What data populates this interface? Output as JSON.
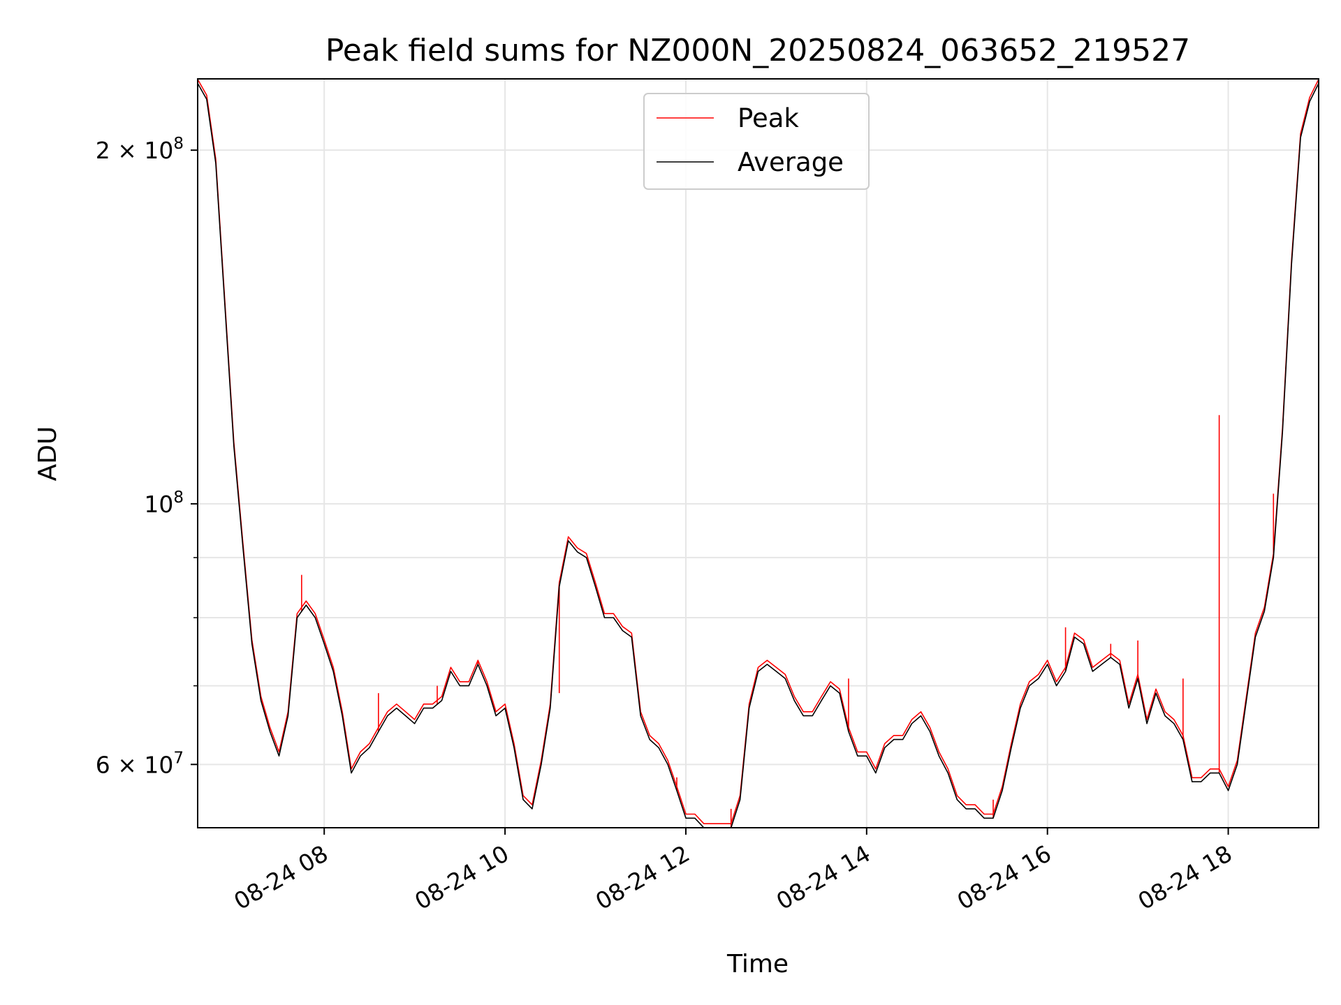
{
  "chart_data": {
    "type": "line",
    "title": "Peak field sums for NZ000N_20250824_063652_219527",
    "xlabel": "Time",
    "ylabel": "ADU",
    "y_scale": "log",
    "xlim": [
      "2025-08-24 06:36",
      "2025-08-24 19:00"
    ],
    "ylim": [
      53000000,
      230000000
    ],
    "grid": true,
    "legend_position": "top-center",
    "x_ticks": [
      {
        "at": "2025-08-24 08:00",
        "label": "08-24 08"
      },
      {
        "at": "2025-08-24 10:00",
        "label": "08-24 10"
      },
      {
        "at": "2025-08-24 12:00",
        "label": "08-24 12"
      },
      {
        "at": "2025-08-24 14:00",
        "label": "08-24 14"
      },
      {
        "at": "2025-08-24 16:00",
        "label": "08-24 16"
      },
      {
        "at": "2025-08-24 18:00",
        "label": "08-24 18"
      }
    ],
    "y_ticks": [
      {
        "value": 60000000,
        "base": "6 × 10",
        "exp": "7"
      },
      {
        "value": 100000000,
        "base": "10",
        "exp": "8"
      },
      {
        "value": 200000000,
        "base": "2 × 10",
        "exp": "8"
      }
    ],
    "y_minor_ticks": [
      70000000,
      80000000,
      90000000
    ],
    "series": [
      {
        "name": "Average",
        "color": "#000000",
        "x": [
          "2025-08-24 06:36",
          "2025-08-24 06:42",
          "2025-08-24 06:48",
          "2025-08-24 06:54",
          "2025-08-24 07:00",
          "2025-08-24 07:06",
          "2025-08-24 07:12",
          "2025-08-24 07:18",
          "2025-08-24 07:24",
          "2025-08-24 07:30",
          "2025-08-24 07:36",
          "2025-08-24 07:42",
          "2025-08-24 07:48",
          "2025-08-24 07:54",
          "2025-08-24 08:00",
          "2025-08-24 08:06",
          "2025-08-24 08:12",
          "2025-08-24 08:18",
          "2025-08-24 08:24",
          "2025-08-24 08:30",
          "2025-08-24 08:36",
          "2025-08-24 08:42",
          "2025-08-24 08:48",
          "2025-08-24 08:54",
          "2025-08-24 09:00",
          "2025-08-24 09:06",
          "2025-08-24 09:12",
          "2025-08-24 09:18",
          "2025-08-24 09:24",
          "2025-08-24 09:30",
          "2025-08-24 09:36",
          "2025-08-24 09:42",
          "2025-08-24 09:48",
          "2025-08-24 09:54",
          "2025-08-24 10:00",
          "2025-08-24 10:06",
          "2025-08-24 10:12",
          "2025-08-24 10:18",
          "2025-08-24 10:24",
          "2025-08-24 10:30",
          "2025-08-24 10:36",
          "2025-08-24 10:42",
          "2025-08-24 10:48",
          "2025-08-24 10:54",
          "2025-08-24 11:00",
          "2025-08-24 11:06",
          "2025-08-24 11:12",
          "2025-08-24 11:18",
          "2025-08-24 11:24",
          "2025-08-24 11:30",
          "2025-08-24 11:36",
          "2025-08-24 11:42",
          "2025-08-24 11:48",
          "2025-08-24 11:54",
          "2025-08-24 12:00",
          "2025-08-24 12:06",
          "2025-08-24 12:12",
          "2025-08-24 12:18",
          "2025-08-24 12:24",
          "2025-08-24 12:30",
          "2025-08-24 12:36",
          "2025-08-24 12:42",
          "2025-08-24 12:48",
          "2025-08-24 12:54",
          "2025-08-24 13:00",
          "2025-08-24 13:06",
          "2025-08-24 13:12",
          "2025-08-24 13:18",
          "2025-08-24 13:24",
          "2025-08-24 13:30",
          "2025-08-24 13:36",
          "2025-08-24 13:42",
          "2025-08-24 13:48",
          "2025-08-24 13:54",
          "2025-08-24 14:00",
          "2025-08-24 14:06",
          "2025-08-24 14:12",
          "2025-08-24 14:18",
          "2025-08-24 14:24",
          "2025-08-24 14:30",
          "2025-08-24 14:36",
          "2025-08-24 14:42",
          "2025-08-24 14:48",
          "2025-08-24 14:54",
          "2025-08-24 15:00",
          "2025-08-24 15:06",
          "2025-08-24 15:12",
          "2025-08-24 15:18",
          "2025-08-24 15:24",
          "2025-08-24 15:30",
          "2025-08-24 15:36",
          "2025-08-24 15:42",
          "2025-08-24 15:48",
          "2025-08-24 15:54",
          "2025-08-24 16:00",
          "2025-08-24 16:06",
          "2025-08-24 16:12",
          "2025-08-24 16:18",
          "2025-08-24 16:24",
          "2025-08-24 16:30",
          "2025-08-24 16:36",
          "2025-08-24 16:42",
          "2025-08-24 16:48",
          "2025-08-24 16:54",
          "2025-08-24 17:00",
          "2025-08-24 17:06",
          "2025-08-24 17:12",
          "2025-08-24 17:18",
          "2025-08-24 17:24",
          "2025-08-24 17:30",
          "2025-08-24 17:36",
          "2025-08-24 17:42",
          "2025-08-24 17:48",
          "2025-08-24 17:54",
          "2025-08-24 18:00",
          "2025-08-24 18:06",
          "2025-08-24 18:12",
          "2025-08-24 18:18",
          "2025-08-24 18:24",
          "2025-08-24 18:30",
          "2025-08-24 18:36",
          "2025-08-24 18:42",
          "2025-08-24 18:48",
          "2025-08-24 18:54",
          "2025-08-24 19:00"
        ],
        "values": [
          228000000,
          221000000,
          195000000,
          148000000,
          112000000,
          92000000,
          76000000,
          68000000,
          64000000,
          61000000,
          66000000,
          80000000,
          82000000,
          80000000,
          76000000,
          72000000,
          66000000,
          59000000,
          61000000,
          62000000,
          64000000,
          66000000,
          67000000,
          66000000,
          65000000,
          67000000,
          67000000,
          68000000,
          72000000,
          70000000,
          70000000,
          73000000,
          70000000,
          66000000,
          67000000,
          62000000,
          56000000,
          55000000,
          60000000,
          67000000,
          85000000,
          93000000,
          91000000,
          90000000,
          85000000,
          80000000,
          80000000,
          78000000,
          77000000,
          66000000,
          63000000,
          62000000,
          60000000,
          57000000,
          54000000,
          54000000,
          53000000,
          53000000,
          53000000,
          53000000,
          56000000,
          67000000,
          72000000,
          73000000,
          72000000,
          71000000,
          68000000,
          66000000,
          66000000,
          68000000,
          70000000,
          69000000,
          64000000,
          61000000,
          61000000,
          59000000,
          62000000,
          63000000,
          63000000,
          65000000,
          66000000,
          64000000,
          61000000,
          59000000,
          56000000,
          55000000,
          55000000,
          54000000,
          54000000,
          57000000,
          62000000,
          67000000,
          70000000,
          71000000,
          73000000,
          70000000,
          72000000,
          77000000,
          76000000,
          72000000,
          73000000,
          74000000,
          73000000,
          67000000,
          71000000,
          65000000,
          69000000,
          66000000,
          65000000,
          63000000,
          58000000,
          58000000,
          59000000,
          59000000,
          57000000,
          60000000,
          68000000,
          77000000,
          81000000,
          90000000,
          115000000,
          160000000,
          205000000,
          220000000,
          228000000
        ]
      },
      {
        "name": "Peak",
        "color": "#ff0000",
        "spikes": [
          {
            "x": "2025-08-24 07:45",
            "value": 87000000
          },
          {
            "x": "2025-08-24 08:36",
            "value": 69000000
          },
          {
            "x": "2025-08-24 09:15",
            "value": 70000000
          },
          {
            "x": "2025-08-24 09:42",
            "value": 73500000
          },
          {
            "x": "2025-08-24 10:36",
            "value": 69000000
          },
          {
            "x": "2025-08-24 11:54",
            "value": 58500000
          },
          {
            "x": "2025-08-24 12:30",
            "value": 55000000
          },
          {
            "x": "2025-08-24 13:48",
            "value": 71000000
          },
          {
            "x": "2025-08-24 14:18",
            "value": 63000000
          },
          {
            "x": "2025-08-24 15:24",
            "value": 56000000
          },
          {
            "x": "2025-08-24 16:12",
            "value": 78500000
          },
          {
            "x": "2025-08-24 16:42",
            "value": 76000000
          },
          {
            "x": "2025-08-24 17:00",
            "value": 76500000
          },
          {
            "x": "2025-08-24 17:30",
            "value": 71000000
          },
          {
            "x": "2025-08-24 17:54",
            "value": 119000000
          },
          {
            "x": "2025-08-24 18:30",
            "value": 102000000
          }
        ]
      }
    ]
  }
}
